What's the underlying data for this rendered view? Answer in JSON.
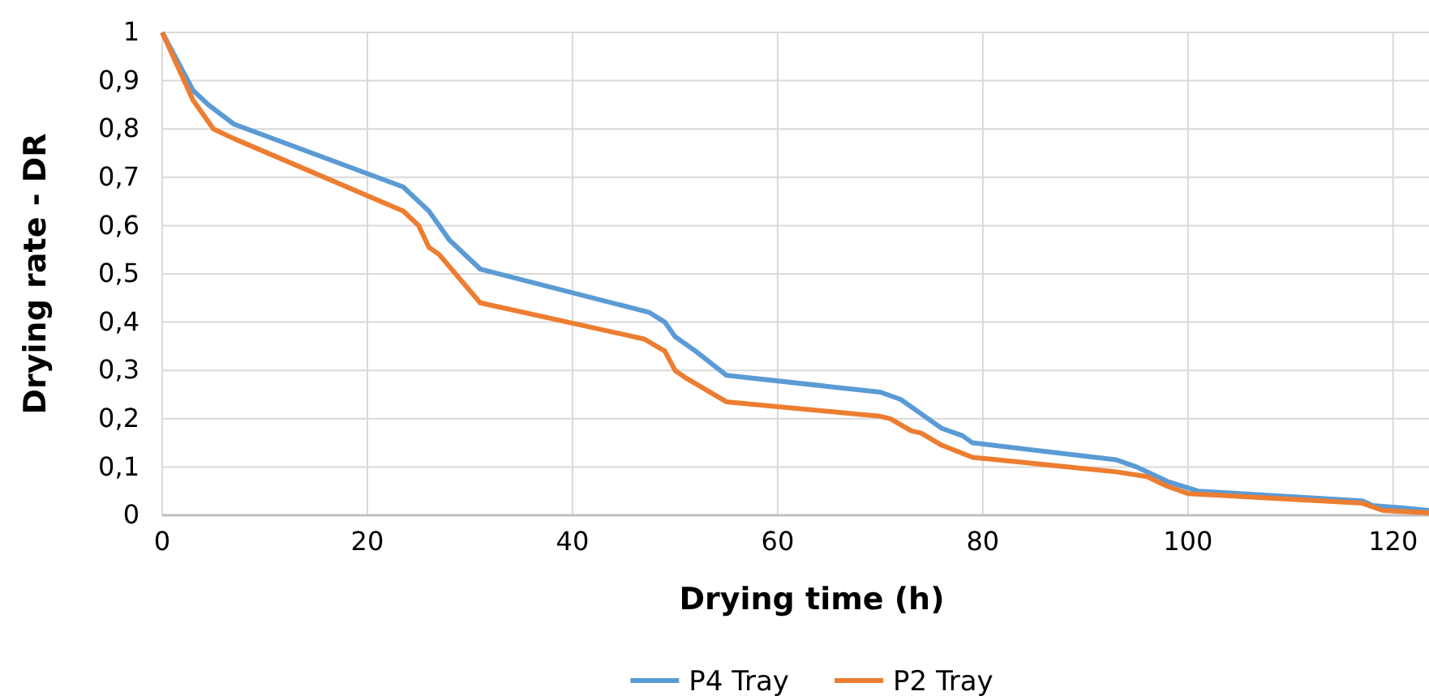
{
  "chart_data": {
    "type": "line",
    "xlabel": "Drying time (h)",
    "ylabel": "Drying rate - DR",
    "xlim": [
      0,
      123.5
    ],
    "xticks": [
      0,
      20,
      40,
      60,
      80,
      100,
      120
    ],
    "ylim": [
      0,
      1
    ],
    "yticks": [
      {
        "value": 0,
        "label": "0"
      },
      {
        "value": 0.1,
        "label": "0,1"
      },
      {
        "value": 0.2,
        "label": "0,2"
      },
      {
        "value": 0.3,
        "label": "0,3"
      },
      {
        "value": 0.4,
        "label": "0,4"
      },
      {
        "value": 0.5,
        "label": "0,5"
      },
      {
        "value": 0.6,
        "label": "0,6"
      },
      {
        "value": 0.7,
        "label": "0,7"
      },
      {
        "value": 0.8,
        "label": "0,8"
      },
      {
        "value": 0.9,
        "label": "0,9"
      },
      {
        "value": 1,
        "label": "1"
      }
    ],
    "grid": true,
    "legend": "bottom",
    "marker": "none",
    "line_style": "solid",
    "series": [
      {
        "name": "P4 Tray",
        "color": "#5b9bd5",
        "x": [
          0,
          3,
          4.5,
          7,
          23.5,
          25,
          26,
          28,
          31,
          47.5,
          49,
          50,
          52,
          55,
          70,
          72,
          74,
          76,
          78,
          79,
          93,
          95,
          97,
          98,
          101,
          117,
          118,
          121,
          123.5
        ],
        "values": [
          1,
          0.88,
          0.85,
          0.81,
          0.68,
          0.65,
          0.63,
          0.57,
          0.51,
          0.42,
          0.4,
          0.37,
          0.34,
          0.29,
          0.255,
          0.24,
          0.21,
          0.18,
          0.165,
          0.15,
          0.115,
          0.1,
          0.08,
          0.07,
          0.05,
          0.03,
          0.02,
          0.015,
          0.01
        ]
      },
      {
        "name": "P2 Tray",
        "color": "#ed7d31",
        "x": [
          0,
          3,
          5,
          7,
          23.5,
          25,
          26,
          27,
          29,
          31,
          47,
          49,
          50,
          51,
          55,
          70,
          71,
          73,
          74,
          76,
          79,
          93,
          96,
          98,
          100,
          117,
          119,
          123.5
        ],
        "values": [
          1,
          0.86,
          0.8,
          0.78,
          0.63,
          0.6,
          0.555,
          0.54,
          0.49,
          0.44,
          0.365,
          0.34,
          0.3,
          0.285,
          0.235,
          0.205,
          0.2,
          0.175,
          0.17,
          0.145,
          0.12,
          0.09,
          0.08,
          0.06,
          0.045,
          0.025,
          0.01,
          0.005
        ]
      }
    ]
  }
}
